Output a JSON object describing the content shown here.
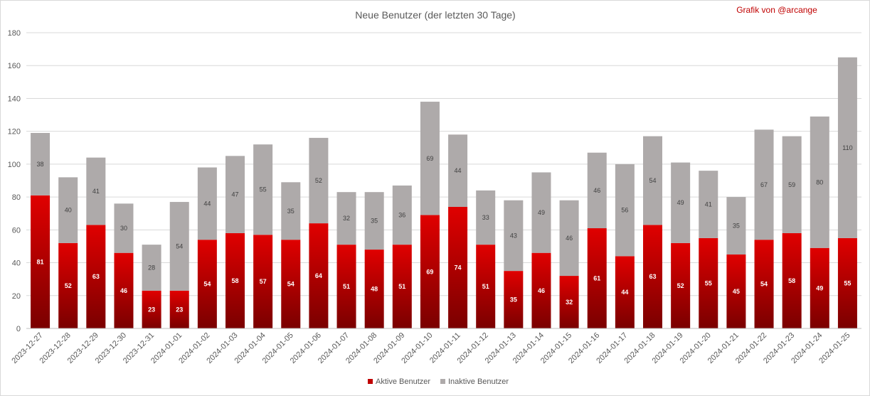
{
  "chart_data": {
    "type": "bar",
    "stacked": true,
    "title": "Neue Benutzer (der letzten 30 Tage)",
    "credit": "Grafik von @arcange",
    "xlabel": "",
    "ylabel": "",
    "ylim": [
      0,
      180
    ],
    "yticks": [
      0,
      20,
      40,
      60,
      80,
      100,
      120,
      140,
      160,
      180
    ],
    "grid": true,
    "legend_position": "bottom",
    "categories": [
      "2023-12-27",
      "2023-12-28",
      "2023-12-29",
      "2023-12-30",
      "2023-12-31",
      "2024-01-01",
      "2024-01-02",
      "2024-01-03",
      "2024-01-04",
      "2024-01-05",
      "2024-01-06",
      "2024-01-07",
      "2024-01-08",
      "2024-01-09",
      "2024-01-10",
      "2024-01-11",
      "2024-01-12",
      "2024-01-13",
      "2024-01-14",
      "2024-01-15",
      "2024-01-16",
      "2024-01-17",
      "2024-01-18",
      "2024-01-19",
      "2024-01-20",
      "2024-01-21",
      "2024-01-22",
      "2024-01-23",
      "2024-01-24",
      "2024-01-25"
    ],
    "series": [
      {
        "name": "Aktive Benutzer",
        "color": "#c00000",
        "values": [
          81,
          52,
          63,
          46,
          23,
          23,
          54,
          58,
          57,
          54,
          64,
          51,
          48,
          51,
          69,
          74,
          51,
          35,
          46,
          32,
          61,
          44,
          63,
          52,
          55,
          45,
          54,
          58,
          49,
          55
        ]
      },
      {
        "name": "Inaktive Benutzer",
        "color": "#aeaaaa",
        "values": [
          38,
          40,
          41,
          30,
          28,
          54,
          44,
          47,
          55,
          35,
          52,
          32,
          35,
          36,
          69,
          44,
          33,
          43,
          49,
          46,
          46,
          56,
          54,
          49,
          41,
          35,
          67,
          59,
          80,
          110
        ]
      }
    ]
  }
}
